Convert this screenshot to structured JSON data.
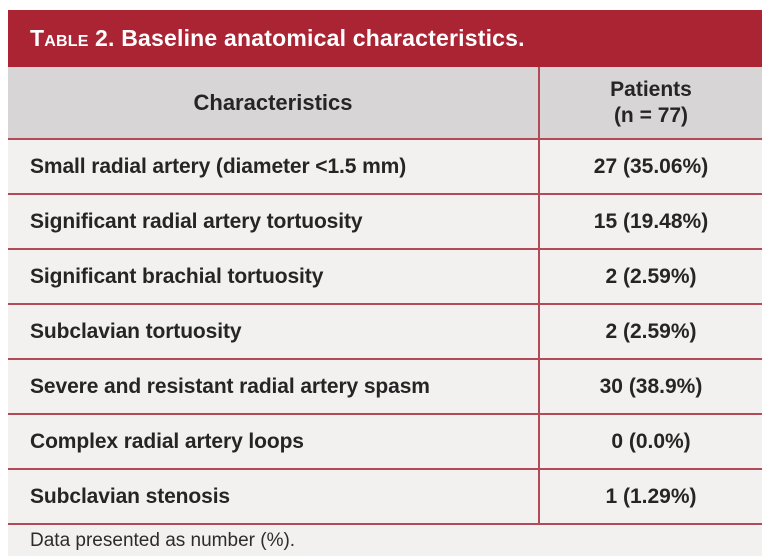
{
  "colors": {
    "title_bar_red": "#aa2434",
    "rule_red": "#b24a58",
    "header_gray": "#d7d5d5",
    "row_background": "#f2f1ef",
    "title_text": "#ffffff",
    "body_text": "#272425"
  },
  "table": {
    "title_smallcaps": "Table",
    "title_rest": "2. Baseline anatomical characteristics.",
    "columns": {
      "characteristics": "Characteristics",
      "patients_line1": "Patients",
      "patients_line2": "(n = 77)"
    },
    "rows": [
      {
        "label": "Small radial artery (diameter <1.5 mm)",
        "value": "27 (35.06%)"
      },
      {
        "label": "Significant radial artery tortuosity",
        "value": "15 (19.48%)"
      },
      {
        "label": "Significant brachial tortuosity",
        "value": "2 (2.59%)"
      },
      {
        "label": "Subclavian tortuosity",
        "value": "2 (2.59%)"
      },
      {
        "label": "Severe and resistant radial artery spasm",
        "value": "30 (38.9%)"
      },
      {
        "label": "Complex radial artery loops",
        "value": "0 (0.0%)"
      },
      {
        "label": "Subclavian stenosis",
        "value": "1 (1.29%)"
      }
    ],
    "footnote": "Data presented as number (%)."
  }
}
